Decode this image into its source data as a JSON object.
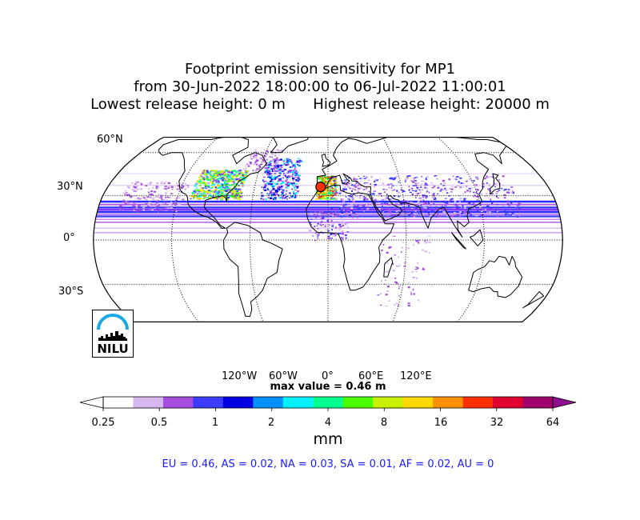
{
  "title": {
    "line1": "Footprint emission sensitivity for MP1",
    "line2": "from 30-Jun-2022 18:00:00 to 06-Jul-2022 11:00:01",
    "line3": "Lowest release height: 0 m      Highest release height: 20000 m"
  },
  "map": {
    "projection": "robinson",
    "center_lon": 0,
    "lat_labels": [
      "60°N",
      "30°N",
      "0°",
      "30°S"
    ],
    "lon_labels": [
      "120°W",
      "60°W",
      "0°",
      "60°E",
      "120°E"
    ],
    "release_marker": {
      "lon": -6,
      "lat": 36
    }
  },
  "logo": {
    "text": "NILU",
    "icon": "nilu-arc-skyline-logo"
  },
  "max_value": "max value = 0.46 m",
  "colorbar": {
    "ticks": [
      "0.25",
      "0.5",
      "1",
      "2",
      "4",
      "8",
      "16",
      "32",
      "64"
    ],
    "unit": "mm",
    "colors": [
      "#ffffff",
      "#d7b7ef",
      "#a64de0",
      "#3c3cff",
      "#0000e0",
      "#0090ff",
      "#00f0ff",
      "#00ff90",
      "#4cff00",
      "#c8f000",
      "#ffd800",
      "#ff9000",
      "#ff3000",
      "#e00030",
      "#a0006c"
    ]
  },
  "region_summary": "EU = 0.46,  AS = 0.02,  NA = 0.03,  SA = 0.01,  AF = 0.02,  AU = 0"
}
